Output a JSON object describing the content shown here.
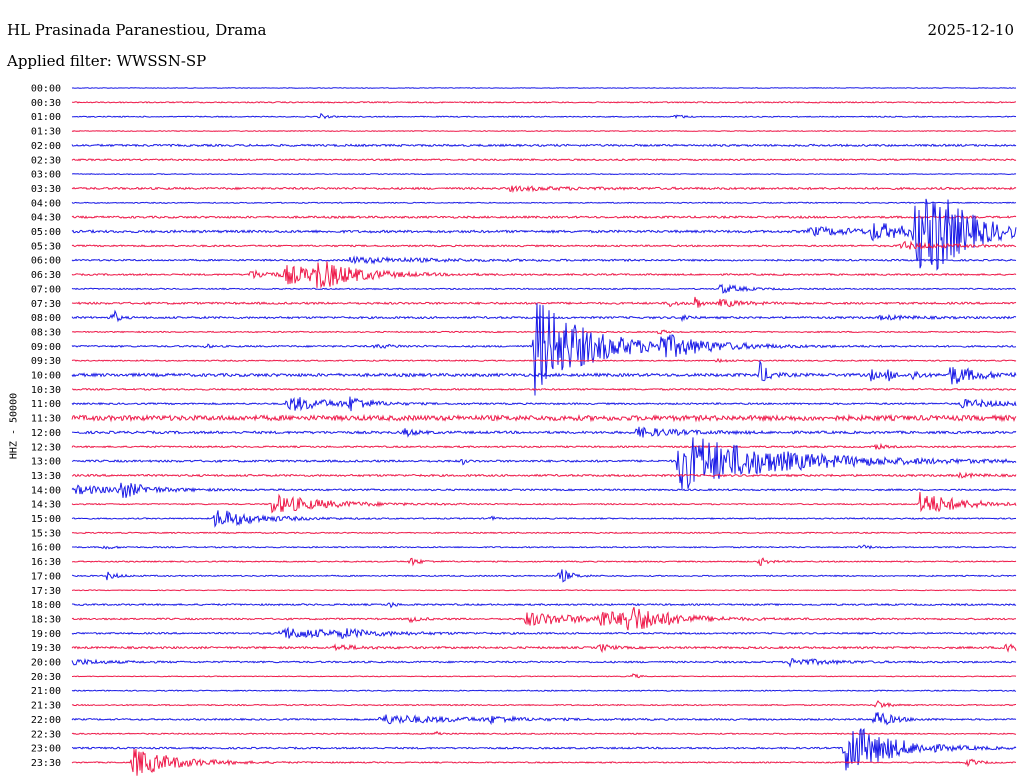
{
  "header": {
    "station": "HL Prasinada Paranestiou, Drama",
    "date": "2025-12-10",
    "filter": "Applied filter: WWSSN-SP"
  },
  "colors": {
    "blue": "#1a1ae6",
    "red": "#ee1a4a"
  },
  "chart_data": {
    "type": "line",
    "ylabel": "HHZ - 50000",
    "rows": [
      "00:00",
      "00:30",
      "01:00",
      "01:30",
      "02:00",
      "02:30",
      "03:00",
      "03:30",
      "04:00",
      "04:30",
      "05:00",
      "05:30",
      "06:00",
      "06:30",
      "07:00",
      "07:30",
      "08:00",
      "08:30",
      "09:00",
      "09:30",
      "10:00",
      "10:30",
      "11:00",
      "11:30",
      "12:00",
      "12:30",
      "13:00",
      "13:30",
      "14:00",
      "14:30",
      "15:00",
      "15:30",
      "16:00",
      "16:30",
      "17:00",
      "17:30",
      "18:00",
      "18:30",
      "19:00",
      "19:30",
      "20:00",
      "20:30",
      "21:00",
      "21:30",
      "22:00",
      "22:30",
      "23:00",
      "23:30"
    ],
    "noise": [
      0.3,
      0.6,
      0.5,
      0.4,
      1.0,
      0.8,
      0.4,
      1.0,
      0.5,
      1.0,
      1.2,
      0.8,
      0.8,
      0.8,
      0.6,
      1.0,
      1.0,
      0.6,
      0.8,
      0.6,
      1.5,
      0.8,
      0.8,
      2.5,
      1.2,
      0.8,
      1.0,
      1.0,
      0.8,
      0.6,
      0.6,
      0.6,
      0.6,
      0.6,
      0.6,
      0.4,
      0.8,
      0.8,
      0.8,
      1.0,
      0.8,
      0.4,
      0.5,
      0.6,
      0.8,
      0.6,
      0.8,
      0.6
    ],
    "events": [
      {
        "row": 2,
        "x": 320,
        "amp": 3,
        "dur": 6
      },
      {
        "row": 2,
        "x": 676,
        "amp": 3,
        "dur": 6
      },
      {
        "row": 7,
        "x": 510,
        "amp": 2,
        "dur": 60
      },
      {
        "row": 10,
        "x": 810,
        "amp": 4,
        "dur": 60
      },
      {
        "row": 10,
        "x": 872,
        "amp": 8,
        "dur": 40
      },
      {
        "row": 10,
        "x": 915,
        "amp": 40,
        "dur": 40
      },
      {
        "row": 10,
        "x": 933,
        "amp": 20,
        "dur": 30
      },
      {
        "row": 11,
        "x": 900,
        "amp": 4,
        "dur": 40
      },
      {
        "row": 12,
        "x": 350,
        "amp": 3,
        "dur": 80
      },
      {
        "row": 13,
        "x": 250,
        "amp": 4,
        "dur": 30
      },
      {
        "row": 13,
        "x": 285,
        "amp": 9,
        "dur": 50
      },
      {
        "row": 13,
        "x": 315,
        "amp": 12,
        "dur": 35
      },
      {
        "row": 14,
        "x": 720,
        "amp": 5,
        "dur": 20
      },
      {
        "row": 15,
        "x": 670,
        "amp": 3,
        "dur": 8
      },
      {
        "row": 15,
        "x": 695,
        "amp": 9,
        "dur": 4
      },
      {
        "row": 15,
        "x": 720,
        "amp": 4,
        "dur": 20
      },
      {
        "row": 16,
        "x": 113,
        "amp": 10,
        "dur": 4
      },
      {
        "row": 16,
        "x": 684,
        "amp": 6,
        "dur": 4
      },
      {
        "row": 16,
        "x": 880,
        "amp": 2,
        "dur": 30
      },
      {
        "row": 17,
        "x": 660,
        "amp": 4,
        "dur": 4
      },
      {
        "row": 18,
        "x": 535,
        "amp": 50,
        "dur": 50
      },
      {
        "row": 18,
        "x": 660,
        "amp": 10,
        "dur": 45
      },
      {
        "row": 18,
        "x": 375,
        "amp": 2,
        "dur": 20
      },
      {
        "row": 18,
        "x": 205,
        "amp": 3,
        "dur": 4
      },
      {
        "row": 19,
        "x": 718,
        "amp": 2,
        "dur": 10
      },
      {
        "row": 20,
        "x": 760,
        "amp": 12,
        "dur": 8
      },
      {
        "row": 20,
        "x": 870,
        "amp": 6,
        "dur": 6
      },
      {
        "row": 20,
        "x": 888,
        "amp": 6,
        "dur": 6
      },
      {
        "row": 20,
        "x": 913,
        "amp": 6,
        "dur": 6
      },
      {
        "row": 20,
        "x": 950,
        "amp": 10,
        "dur": 25
      },
      {
        "row": 22,
        "x": 288,
        "amp": 8,
        "dur": 40
      },
      {
        "row": 22,
        "x": 350,
        "amp": 7,
        "dur": 15
      },
      {
        "row": 22,
        "x": 960,
        "amp": 4,
        "dur": 60
      },
      {
        "row": 24,
        "x": 405,
        "amp": 4,
        "dur": 10
      },
      {
        "row": 24,
        "x": 635,
        "amp": 5,
        "dur": 40
      },
      {
        "row": 25,
        "x": 875,
        "amp": 3,
        "dur": 8
      },
      {
        "row": 26,
        "x": 678,
        "amp": 30,
        "dur": 90
      },
      {
        "row": 26,
        "x": 463,
        "amp": 3,
        "dur": 3
      },
      {
        "row": 27,
        "x": 957,
        "amp": 2,
        "dur": 20
      },
      {
        "row": 28,
        "x": 75,
        "amp": 4,
        "dur": 60
      },
      {
        "row": 28,
        "x": 120,
        "amp": 8,
        "dur": 20
      },
      {
        "row": 29,
        "x": 272,
        "amp": 10,
        "dur": 50
      },
      {
        "row": 29,
        "x": 920,
        "amp": 12,
        "dur": 40
      },
      {
        "row": 30,
        "x": 215,
        "amp": 10,
        "dur": 40
      },
      {
        "row": 30,
        "x": 490,
        "amp": 3,
        "dur": 4
      },
      {
        "row": 32,
        "x": 860,
        "amp": 3,
        "dur": 8
      },
      {
        "row": 32,
        "x": 103,
        "amp": 2,
        "dur": 10
      },
      {
        "row": 33,
        "x": 410,
        "amp": 4,
        "dur": 10
      },
      {
        "row": 33,
        "x": 760,
        "amp": 4,
        "dur": 8
      },
      {
        "row": 34,
        "x": 107,
        "amp": 4,
        "dur": 10
      },
      {
        "row": 34,
        "x": 560,
        "amp": 8,
        "dur": 10
      },
      {
        "row": 36,
        "x": 390,
        "amp": 4,
        "dur": 4
      },
      {
        "row": 37,
        "x": 410,
        "amp": 3,
        "dur": 10
      },
      {
        "row": 37,
        "x": 525,
        "amp": 7,
        "dur": 60
      },
      {
        "row": 37,
        "x": 600,
        "amp": 8,
        "dur": 30
      },
      {
        "row": 37,
        "x": 625,
        "amp": 12,
        "dur": 40
      },
      {
        "row": 38,
        "x": 280,
        "amp": 6,
        "dur": 60
      },
      {
        "row": 38,
        "x": 340,
        "amp": 3,
        "dur": 30
      },
      {
        "row": 39,
        "x": 335,
        "amp": 3,
        "dur": 20
      },
      {
        "row": 39,
        "x": 600,
        "amp": 4,
        "dur": 10
      },
      {
        "row": 39,
        "x": 1005,
        "amp": 8,
        "dur": 15
      },
      {
        "row": 40,
        "x": 72,
        "amp": 3,
        "dur": 30
      },
      {
        "row": 40,
        "x": 790,
        "amp": 4,
        "dur": 35
      },
      {
        "row": 41,
        "x": 633,
        "amp": 3,
        "dur": 5
      },
      {
        "row": 43,
        "x": 877,
        "amp": 5,
        "dur": 8
      },
      {
        "row": 44,
        "x": 380,
        "amp": 5,
        "dur": 70
      },
      {
        "row": 44,
        "x": 490,
        "amp": 3,
        "dur": 20
      },
      {
        "row": 44,
        "x": 875,
        "amp": 10,
        "dur": 15
      },
      {
        "row": 45,
        "x": 437,
        "amp": 4,
        "dur": 4
      },
      {
        "row": 46,
        "x": 845,
        "amp": 30,
        "dur": 40
      },
      {
        "row": 47,
        "x": 133,
        "amp": 15,
        "dur": 40
      },
      {
        "row": 47,
        "x": 968,
        "amp": 4,
        "dur": 10
      }
    ]
  }
}
